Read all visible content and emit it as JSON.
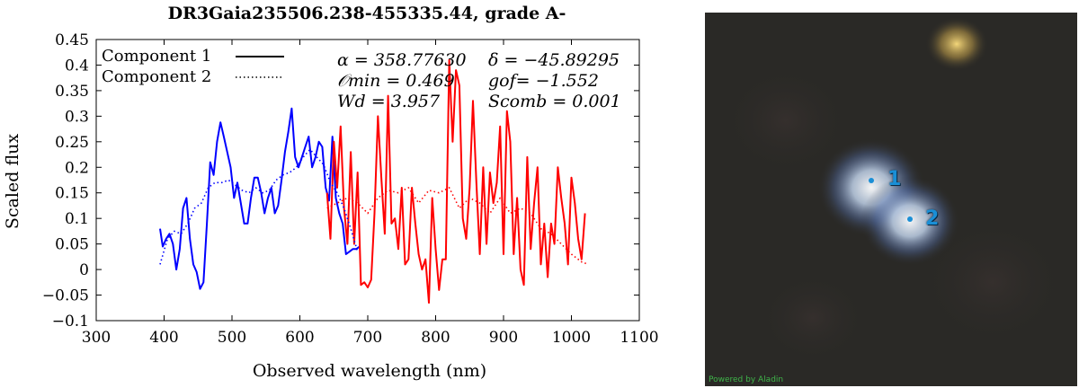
{
  "chart_data": {
    "type": "line",
    "title": "DR3Gaia235506.238-455335.44, grade A-",
    "xlabel": "Observed wavelength (nm)",
    "ylabel": "Scaled flux",
    "xlim": [
      300,
      1100
    ],
    "ylim": [
      -0.1,
      0.45
    ],
    "xticks": [
      300,
      400,
      500,
      600,
      700,
      800,
      900,
      1000,
      1100
    ],
    "yticks": [
      -0.1,
      -0.05,
      0,
      0.05,
      0.1,
      0.15,
      0.2,
      0.25,
      0.3,
      0.35,
      0.4,
      0.45
    ],
    "legend": [
      {
        "label": "Component 1",
        "style": "solid"
      },
      {
        "label": "Component 2",
        "style": "dotted"
      }
    ],
    "annotations": {
      "alpha": "α = 358.77630",
      "delta": "δ = −45.89295",
      "omin": "𝒪min = 0.469",
      "gof": "gof= −1.552",
      "wd": "Wd = 3.957",
      "scomb": "Scomb = 0.001"
    },
    "series": [
      {
        "name": "Component 1 (BP)",
        "color": "#0000ff",
        "dash": "solid",
        "x": [
          394,
          398,
          403,
          408,
          413,
          418,
          423,
          428,
          433,
          438,
          443,
          448,
          453,
          458,
          463,
          468,
          473,
          478,
          483,
          488,
          493,
          498,
          503,
          508,
          513,
          518,
          523,
          528,
          533,
          538,
          543,
          548,
          553,
          558,
          563,
          568,
          573,
          578,
          583,
          588,
          593,
          598,
          603,
          608,
          613,
          618,
          623,
          628,
          633,
          638,
          643,
          648,
          653,
          658,
          663,
          668,
          673,
          678,
          683,
          688
        ],
        "y": [
          0.08,
          0.045,
          0.06,
          0.07,
          0.05,
          0.0,
          0.04,
          0.12,
          0.14,
          0.06,
          0.01,
          -0.005,
          -0.038,
          -0.025,
          0.09,
          0.21,
          0.185,
          0.25,
          0.288,
          0.26,
          0.23,
          0.2,
          0.14,
          0.17,
          0.13,
          0.09,
          0.09,
          0.14,
          0.18,
          0.18,
          0.15,
          0.11,
          0.14,
          0.16,
          0.11,
          0.125,
          0.175,
          0.23,
          0.27,
          0.315,
          0.22,
          0.2,
          0.22,
          0.24,
          0.26,
          0.2,
          0.22,
          0.25,
          0.24,
          0.16,
          0.135,
          0.26,
          0.14,
          0.11,
          0.09,
          0.03,
          0.035,
          0.04,
          0.04,
          0.045
        ]
      },
      {
        "name": "Component 1 (RP)",
        "color": "#ff0000",
        "dash": "solid",
        "x": [
          640,
          645,
          650,
          655,
          660,
          665,
          670,
          675,
          680,
          685,
          690,
          695,
          700,
          705,
          710,
          715,
          720,
          725,
          730,
          735,
          740,
          745,
          750,
          755,
          760,
          765,
          770,
          775,
          780,
          785,
          790,
          795,
          800,
          805,
          810,
          815,
          820,
          825,
          830,
          835,
          840,
          845,
          850,
          855,
          860,
          865,
          870,
          875,
          880,
          885,
          890,
          895,
          900,
          905,
          910,
          915,
          920,
          925,
          930,
          935,
          940,
          945,
          950,
          955,
          960,
          965,
          970,
          975,
          980,
          985,
          990,
          995,
          1000,
          1005,
          1010,
          1015,
          1020
        ],
        "y": [
          0.15,
          0.06,
          0.25,
          0.16,
          0.28,
          0.12,
          0.05,
          0.23,
          0.05,
          0.19,
          -0.03,
          -0.025,
          -0.035,
          -0.02,
          0.11,
          0.3,
          0.18,
          0.07,
          0.34,
          0.09,
          0.1,
          0.04,
          0.16,
          0.01,
          0.02,
          0.16,
          0.09,
          0.03,
          0.0,
          0.02,
          -0.065,
          0.14,
          0.04,
          -0.04,
          0.02,
          0.02,
          0.41,
          0.25,
          0.39,
          0.36,
          0.1,
          0.06,
          0.16,
          0.33,
          0.17,
          0.03,
          0.2,
          0.05,
          0.19,
          0.13,
          0.17,
          0.28,
          0.03,
          0.31,
          0.25,
          0.03,
          0.14,
          0.0,
          -0.03,
          0.22,
          0.04,
          0.13,
          0.2,
          0.01,
          0.09,
          -0.015,
          0.09,
          0.05,
          0.2,
          0.14,
          0.09,
          0.01,
          0.18,
          0.13,
          0.06,
          0.02,
          0.11
        ]
      },
      {
        "name": "Component 2 (BP)",
        "color": "#0000ff",
        "dash": "dotted",
        "x": [
          394,
          405,
          415,
          425,
          435,
          445,
          455,
          465,
          475,
          485,
          495,
          505,
          515,
          525,
          535,
          545,
          555,
          565,
          575,
          585,
          595,
          605,
          615,
          625,
          635,
          645,
          655,
          665,
          675,
          685
        ],
        "y": [
          0.01,
          0.06,
          0.075,
          0.07,
          0.09,
          0.12,
          0.13,
          0.16,
          0.17,
          0.17,
          0.175,
          0.165,
          0.155,
          0.15,
          0.16,
          0.15,
          0.155,
          0.175,
          0.185,
          0.19,
          0.2,
          0.22,
          0.235,
          0.22,
          0.205,
          0.17,
          0.15,
          0.12,
          0.08,
          0.035
        ]
      },
      {
        "name": "Component 2 (RP)",
        "color": "#ff0000",
        "dash": "dotted",
        "x": [
          640,
          655,
          670,
          685,
          700,
          715,
          730,
          745,
          760,
          775,
          790,
          805,
          820,
          835,
          850,
          865,
          880,
          895,
          910,
          925,
          940,
          955,
          970,
          985,
          1000,
          1015,
          1025
        ],
        "y": [
          0.12,
          0.13,
          0.14,
          0.13,
          0.11,
          0.14,
          0.155,
          0.15,
          0.16,
          0.13,
          0.155,
          0.15,
          0.16,
          0.12,
          0.14,
          0.13,
          0.11,
          0.14,
          0.11,
          0.12,
          0.11,
          0.08,
          0.07,
          0.05,
          0.03,
          0.015,
          0.01
        ]
      }
    ]
  },
  "sky_image": {
    "labels": [
      "1",
      "2"
    ],
    "credit": "Powered by Aladin",
    "source_color": "#1a8fd6"
  }
}
